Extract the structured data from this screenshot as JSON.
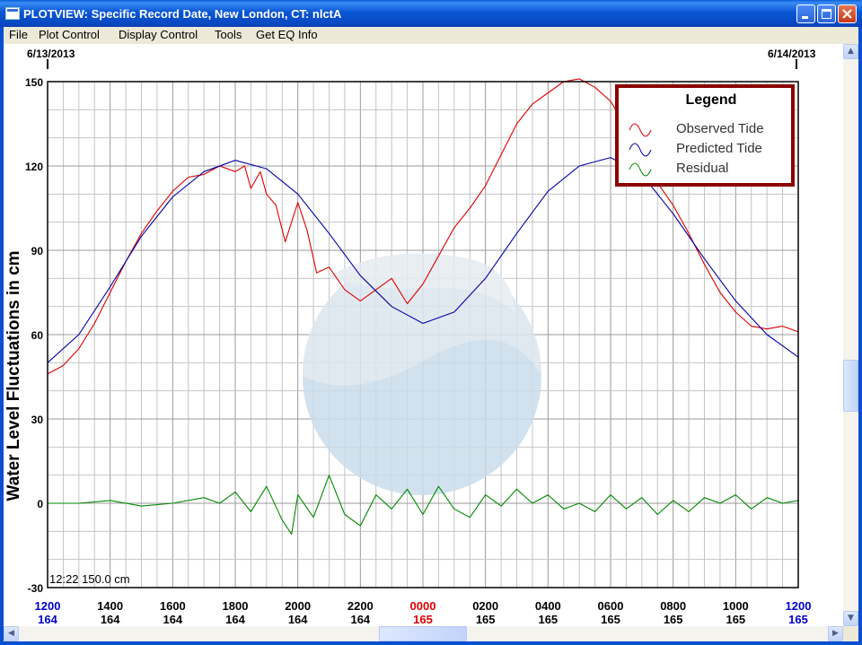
{
  "window": {
    "title": "PLOTVIEW: Specific Record Date, New London, CT: nlctA"
  },
  "menu": [
    "File",
    "Plot Control",
    "Display Control",
    "Tools",
    "Get EQ Info"
  ],
  "dates": {
    "left": "6/13/2013",
    "right": "6/14/2013"
  },
  "readout": "12:22 150.0 cm",
  "colors": {
    "observed": "#DD0000",
    "predicted": "#0000AA",
    "residual": "#008800",
    "legend_border": "#8B0000",
    "highlight_tick": "#DD0000",
    "edge_tick": "#0000CC"
  },
  "chart_data": {
    "type": "line",
    "ylabel": "Water Level Fluctuations in cm",
    "ylim": [
      -30,
      150
    ],
    "yticks": [
      -30,
      0,
      30,
      60,
      90,
      120,
      150
    ],
    "xlim": [
      0,
      24
    ],
    "xticks": [
      {
        "label": "1200",
        "day": "164"
      },
      {
        "label": "1400",
        "day": "164"
      },
      {
        "label": "1600",
        "day": "164"
      },
      {
        "label": "1800",
        "day": "164"
      },
      {
        "label": "2000",
        "day": "164"
      },
      {
        "label": "2200",
        "day": "164"
      },
      {
        "label": "0000",
        "day": "165"
      },
      {
        "label": "0200",
        "day": "165"
      },
      {
        "label": "0400",
        "day": "165"
      },
      {
        "label": "0600",
        "day": "165"
      },
      {
        "label": "0800",
        "day": "165"
      },
      {
        "label": "1000",
        "day": "165"
      },
      {
        "label": "1200",
        "day": "165"
      }
    ],
    "legend": {
      "title": "Legend",
      "position": "top-right"
    },
    "grid": true,
    "series": [
      {
        "name": "Observed Tide",
        "color": "#DD0000",
        "x": [
          0,
          0.5,
          1,
          1.5,
          2,
          2.5,
          3,
          3.5,
          4,
          4.5,
          5,
          5.5,
          6,
          6.3,
          6.5,
          6.8,
          7,
          7.3,
          7.6,
          8,
          8.3,
          8.6,
          9,
          9.5,
          10,
          10.5,
          11,
          11.5,
          12,
          12.5,
          13,
          13.5,
          14,
          14.5,
          15,
          15.5,
          16,
          16.5,
          17,
          17.5,
          18,
          18.5,
          19,
          19.5,
          20,
          20.5,
          21,
          21.5,
          22,
          22.5,
          23,
          23.5,
          24
        ],
        "y": [
          46,
          49,
          55,
          64,
          75,
          86,
          96,
          104,
          111,
          116,
          117,
          120,
          118,
          120,
          112,
          118,
          110,
          106,
          93,
          107,
          97,
          82,
          84,
          76,
          72,
          76,
          80,
          71,
          78,
          88,
          98,
          105,
          113,
          124,
          135,
          142,
          146,
          150,
          151,
          148,
          143,
          134,
          124,
          114,
          106,
          96,
          85,
          75,
          68,
          63,
          62,
          63,
          61
        ]
      },
      {
        "name": "Predicted Tide",
        "color": "#0000AA",
        "x": [
          0,
          1,
          2,
          3,
          4,
          5,
          6,
          7,
          8,
          9,
          10,
          11,
          12,
          13,
          14,
          15,
          16,
          17,
          18,
          19,
          20,
          21,
          22,
          23,
          24
        ],
        "y": [
          50,
          60,
          77,
          95,
          109,
          118,
          122,
          119,
          110,
          96,
          81,
          70,
          64,
          68,
          80,
          96,
          111,
          120,
          123,
          117,
          103,
          87,
          72,
          60,
          52
        ]
      },
      {
        "name": "Residual",
        "color": "#008800",
        "x": [
          0,
          1,
          2,
          3,
          4,
          5,
          5.5,
          6,
          6.5,
          7,
          7.5,
          7.8,
          8,
          8.5,
          9,
          9.5,
          10,
          10.5,
          11,
          11.5,
          12,
          12.5,
          13,
          13.5,
          14,
          14.5,
          15,
          15.5,
          16,
          16.5,
          17,
          17.5,
          18,
          18.5,
          19,
          19.5,
          20,
          20.5,
          21,
          21.5,
          22,
          22.5,
          23,
          23.5,
          24
        ],
        "y": [
          0,
          0,
          1,
          -1,
          0,
          2,
          0,
          4,
          -3,
          6,
          -6,
          -11,
          3,
          -5,
          10,
          -4,
          -8,
          3,
          -2,
          5,
          -4,
          6,
          -2,
          -5,
          3,
          -1,
          5,
          0,
          3,
          -2,
          0,
          -3,
          3,
          -2,
          2,
          -4,
          1,
          -3,
          2,
          0,
          3,
          -2,
          2,
          0,
          1
        ]
      }
    ]
  }
}
